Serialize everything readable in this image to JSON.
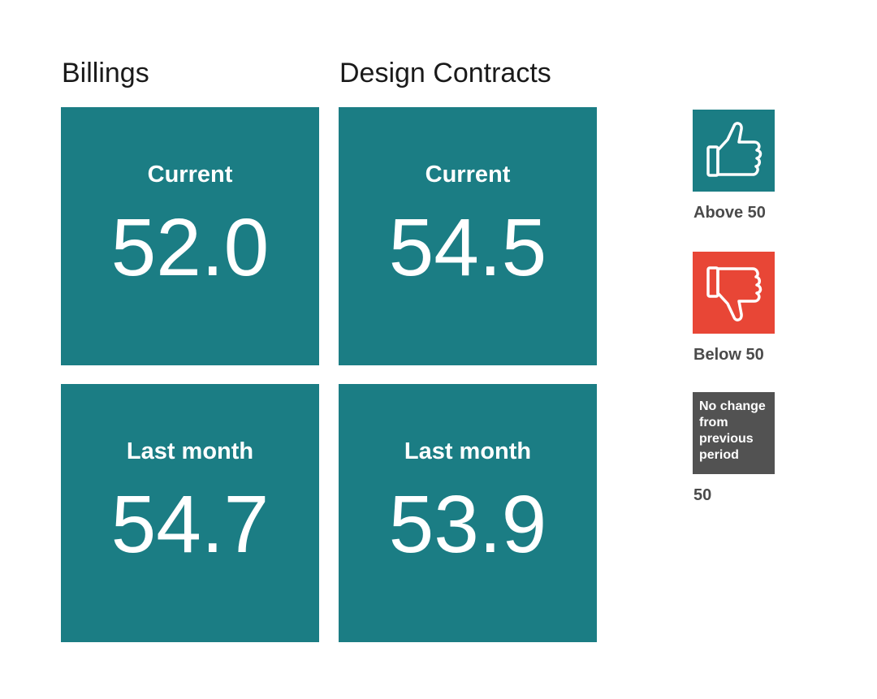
{
  "colors": {
    "tile": "#1b7d84",
    "above": "#1b7d84",
    "below": "#e84636",
    "nochange": "#525252"
  },
  "columns": [
    {
      "title": "Billings",
      "current_label": "Current",
      "current_value": "52.0",
      "last_label": "Last month",
      "last_value": "54.7"
    },
    {
      "title": "Design Contracts",
      "current_label": "Current",
      "current_value": "54.5",
      "last_label": "Last month",
      "last_value": "53.9"
    }
  ],
  "legend": {
    "above": {
      "icon": "thumbs-up-icon",
      "label": "Above 50"
    },
    "below": {
      "icon": "thumbs-down-icon",
      "label": "Below 50"
    },
    "nochange": {
      "box_text": "No change\nfrom\nprevious\nperiod",
      "label": "50"
    }
  }
}
